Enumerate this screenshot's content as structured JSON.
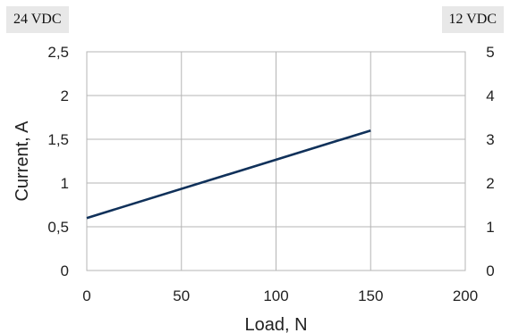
{
  "badges": {
    "left": "24 VDC",
    "right": "12 VDC"
  },
  "colors": {
    "series": "#10315a",
    "grid": "#b5b5b5",
    "badge_bg": "#e8e8e8"
  },
  "chart_data": {
    "type": "line",
    "title": "",
    "xlabel": "Load, N",
    "ylabel": "Current, A",
    "xlim": [
      0,
      200
    ],
    "ylim": [
      0,
      2.5
    ],
    "xticks": [
      "0",
      "50",
      "100",
      "150",
      "200"
    ],
    "yticks_left": [
      "0",
      "0,5",
      "1",
      "1,5",
      "2",
      "2,5"
    ],
    "yticks_right": [
      "0",
      "1",
      "2",
      "3",
      "4",
      "5"
    ],
    "y2lim": [
      0,
      5
    ],
    "grid": true,
    "legend": "none",
    "series": [
      {
        "x": [
          0,
          150
        ],
        "y": [
          0.6,
          1.6
        ]
      }
    ]
  }
}
